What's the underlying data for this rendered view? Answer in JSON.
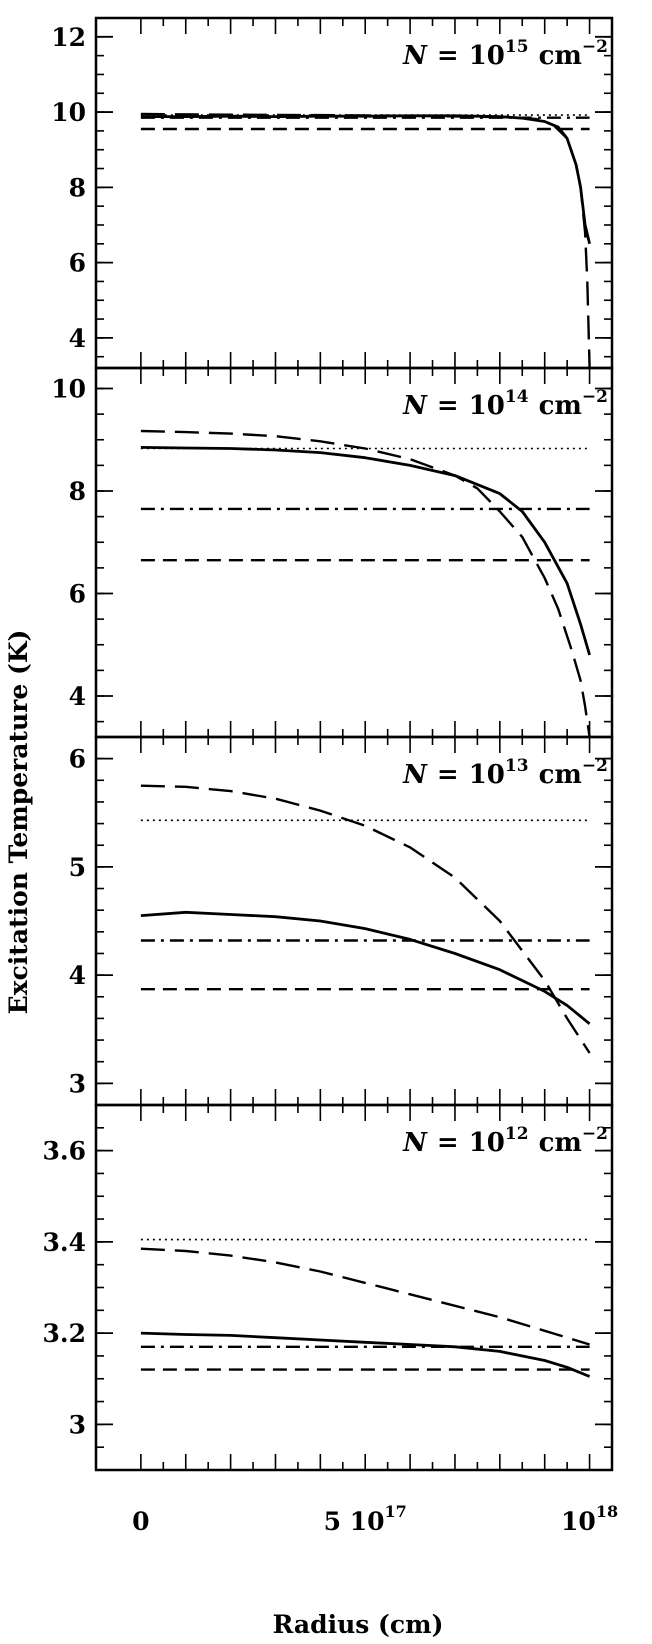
{
  "chart_data": [
    {
      "type": "line",
      "panel_label": {
        "prefix": "N",
        "equals": "=",
        "base": "10",
        "exponent": "15",
        "unit": "cm",
        "unit_exponent": "−2"
      },
      "xlim": [
        -1e+17,
        1.05e+18
      ],
      "ylim": [
        3.2,
        12.5
      ],
      "y_ticks": [
        4,
        6,
        8,
        10,
        12
      ],
      "y_minor_step": 0.5,
      "grid": false,
      "series": [
        {
          "style": "solid",
          "x": [
            0,
            1e+17,
            2e+17,
            3e+17,
            4e+17,
            5e+17,
            6e+17,
            7e+17,
            8e+17,
            8.5e+17,
            9e+17,
            9.3e+17,
            9.5e+17,
            9.7e+17,
            9.8e+17,
            9.9e+17,
            1e+18
          ],
          "y": [
            9.88,
            9.88,
            9.89,
            9.88,
            9.89,
            9.89,
            9.9,
            9.9,
            9.88,
            9.84,
            9.75,
            9.6,
            9.3,
            8.6,
            8.0,
            7.0,
            6.5
          ]
        },
        {
          "style": "long-dash",
          "x": [
            0,
            2e+17,
            4e+17,
            6e+17,
            8e+17,
            8.8e+17,
            9.2e+17,
            9.5e+17,
            9.7e+17,
            9.8e+17,
            9.9e+17,
            9.95e+17,
            1e+18
          ],
          "y": [
            9.95,
            9.93,
            9.92,
            9.9,
            9.87,
            9.82,
            9.65,
            9.3,
            8.6,
            8.0,
            6.8,
            5.5,
            3.2
          ]
        },
        {
          "style": "dotted",
          "x": [
            0,
            1e+18
          ],
          "y": [
            9.92,
            9.92
          ]
        },
        {
          "style": "dot-dash",
          "x": [
            0,
            1e+18
          ],
          "y": [
            9.85,
            9.85
          ]
        },
        {
          "style": "dash",
          "x": [
            0,
            1e+18
          ],
          "y": [
            9.55,
            9.55
          ]
        }
      ]
    },
    {
      "type": "line",
      "panel_label": {
        "prefix": "N",
        "equals": "=",
        "base": "10",
        "exponent": "14",
        "unit": "cm",
        "unit_exponent": "−2"
      },
      "xlim": [
        -1e+17,
        1.05e+18
      ],
      "ylim": [
        3.2,
        10.4
      ],
      "y_ticks": [
        4,
        6,
        8,
        10
      ],
      "y_minor_step": 0.5,
      "grid": false,
      "series": [
        {
          "style": "solid",
          "x": [
            0,
            1e+17,
            2e+17,
            3e+17,
            4e+17,
            5e+17,
            6e+17,
            7e+17,
            8e+17,
            8.5e+17,
            9e+17,
            9.5e+17,
            9.8e+17,
            1e+18
          ],
          "y": [
            8.85,
            8.84,
            8.83,
            8.8,
            8.75,
            8.65,
            8.5,
            8.3,
            7.95,
            7.6,
            7.0,
            6.2,
            5.4,
            4.8
          ]
        },
        {
          "style": "long-dash",
          "x": [
            0,
            1e+17,
            2e+17,
            3e+17,
            4e+17,
            5e+17,
            6e+17,
            7e+17,
            7.5e+17,
            8e+17,
            8.5e+17,
            9e+17,
            9.3e+17,
            9.6e+17,
            9.8e+17,
            9.9e+17,
            1e+18
          ],
          "y": [
            9.17,
            9.15,
            9.12,
            9.07,
            8.97,
            8.83,
            8.62,
            8.3,
            8.05,
            7.6,
            7.1,
            6.3,
            5.7,
            4.9,
            4.3,
            3.8,
            3.2
          ]
        },
        {
          "style": "dotted",
          "x": [
            0,
            1e+18
          ],
          "y": [
            8.83,
            8.83
          ]
        },
        {
          "style": "dot-dash",
          "x": [
            0,
            1e+18
          ],
          "y": [
            7.65,
            7.65
          ]
        },
        {
          "style": "dash",
          "x": [
            0,
            1e+18
          ],
          "y": [
            6.65,
            6.65
          ]
        }
      ]
    },
    {
      "type": "line",
      "panel_label": {
        "prefix": "N",
        "equals": "=",
        "base": "10",
        "exponent": "13",
        "unit": "cm",
        "unit_exponent": "−2"
      },
      "xlim": [
        -1e+17,
        1.05e+18
      ],
      "ylim": [
        2.8,
        6.2
      ],
      "y_ticks": [
        3,
        4,
        5,
        6
      ],
      "y_minor_step": 0.2,
      "grid": false,
      "series": [
        {
          "style": "solid",
          "x": [
            0,
            1e+17,
            2e+17,
            3e+17,
            4e+17,
            5e+17,
            6e+17,
            7e+17,
            8e+17,
            9e+17,
            9.5e+17,
            1e+18
          ],
          "y": [
            4.55,
            4.58,
            4.56,
            4.54,
            4.5,
            4.43,
            4.33,
            4.2,
            4.05,
            3.85,
            3.72,
            3.55
          ]
        },
        {
          "style": "long-dash",
          "x": [
            0,
            1e+17,
            2e+17,
            3e+17,
            4e+17,
            5e+17,
            6e+17,
            7e+17,
            8e+17,
            9e+17,
            9.5e+17,
            1e+18
          ],
          "y": [
            5.75,
            5.74,
            5.7,
            5.63,
            5.52,
            5.38,
            5.18,
            4.9,
            4.5,
            3.95,
            3.6,
            3.28
          ]
        },
        {
          "style": "dotted",
          "x": [
            0,
            1e+18
          ],
          "y": [
            5.43,
            5.43
          ]
        },
        {
          "style": "dot-dash",
          "x": [
            0,
            1e+18
          ],
          "y": [
            4.32,
            4.32
          ]
        },
        {
          "style": "dash",
          "x": [
            0,
            1e+18
          ],
          "y": [
            3.87,
            3.87
          ]
        }
      ]
    },
    {
      "type": "line",
      "panel_label": {
        "prefix": "N",
        "equals": "=",
        "base": "10",
        "exponent": "12",
        "unit": "cm",
        "unit_exponent": "−2"
      },
      "xlim": [
        -1e+17,
        1.05e+18
      ],
      "ylim": [
        2.9,
        3.7
      ],
      "y_ticks": [
        3,
        3.2,
        3.4,
        3.6
      ],
      "y_tick_labels": [
        "3",
        "3.2",
        "3.4",
        "3.6"
      ],
      "y_minor_step": 0.05,
      "grid": false,
      "series": [
        {
          "style": "solid",
          "x": [
            0,
            1e+17,
            2e+17,
            3e+17,
            4e+17,
            5e+17,
            6e+17,
            7e+17,
            8e+17,
            9e+17,
            9.5e+17,
            1e+18
          ],
          "y": [
            3.2,
            3.197,
            3.195,
            3.19,
            3.185,
            3.18,
            3.175,
            3.17,
            3.16,
            3.14,
            3.125,
            3.105
          ]
        },
        {
          "style": "long-dash",
          "x": [
            0,
            1e+17,
            2e+17,
            3e+17,
            4e+17,
            5e+17,
            6e+17,
            7e+17,
            8e+17,
            9e+17,
            1e+18
          ],
          "y": [
            3.385,
            3.38,
            3.37,
            3.355,
            3.335,
            3.31,
            3.285,
            3.26,
            3.235,
            3.205,
            3.175
          ]
        },
        {
          "style": "dotted",
          "x": [
            0,
            1e+18
          ],
          "y": [
            3.405,
            3.405
          ]
        },
        {
          "style": "dot-dash",
          "x": [
            0,
            1e+18
          ],
          "y": [
            3.17,
            3.17
          ]
        },
        {
          "style": "dash",
          "x": [
            0,
            1e+18
          ],
          "y": [
            3.12,
            3.12
          ]
        }
      ]
    }
  ],
  "x_axis": {
    "title": "Radius (cm)",
    "tick_labels": [
      {
        "value": 0,
        "text": "0"
      },
      {
        "value": 5e+17,
        "text": "5 10",
        "exponent": "17"
      },
      {
        "value": 1e+18,
        "text": "10",
        "exponent": "18"
      }
    ],
    "major_step": 1e+17
  },
  "y_axis_title": "Excitation Temperature (K)"
}
